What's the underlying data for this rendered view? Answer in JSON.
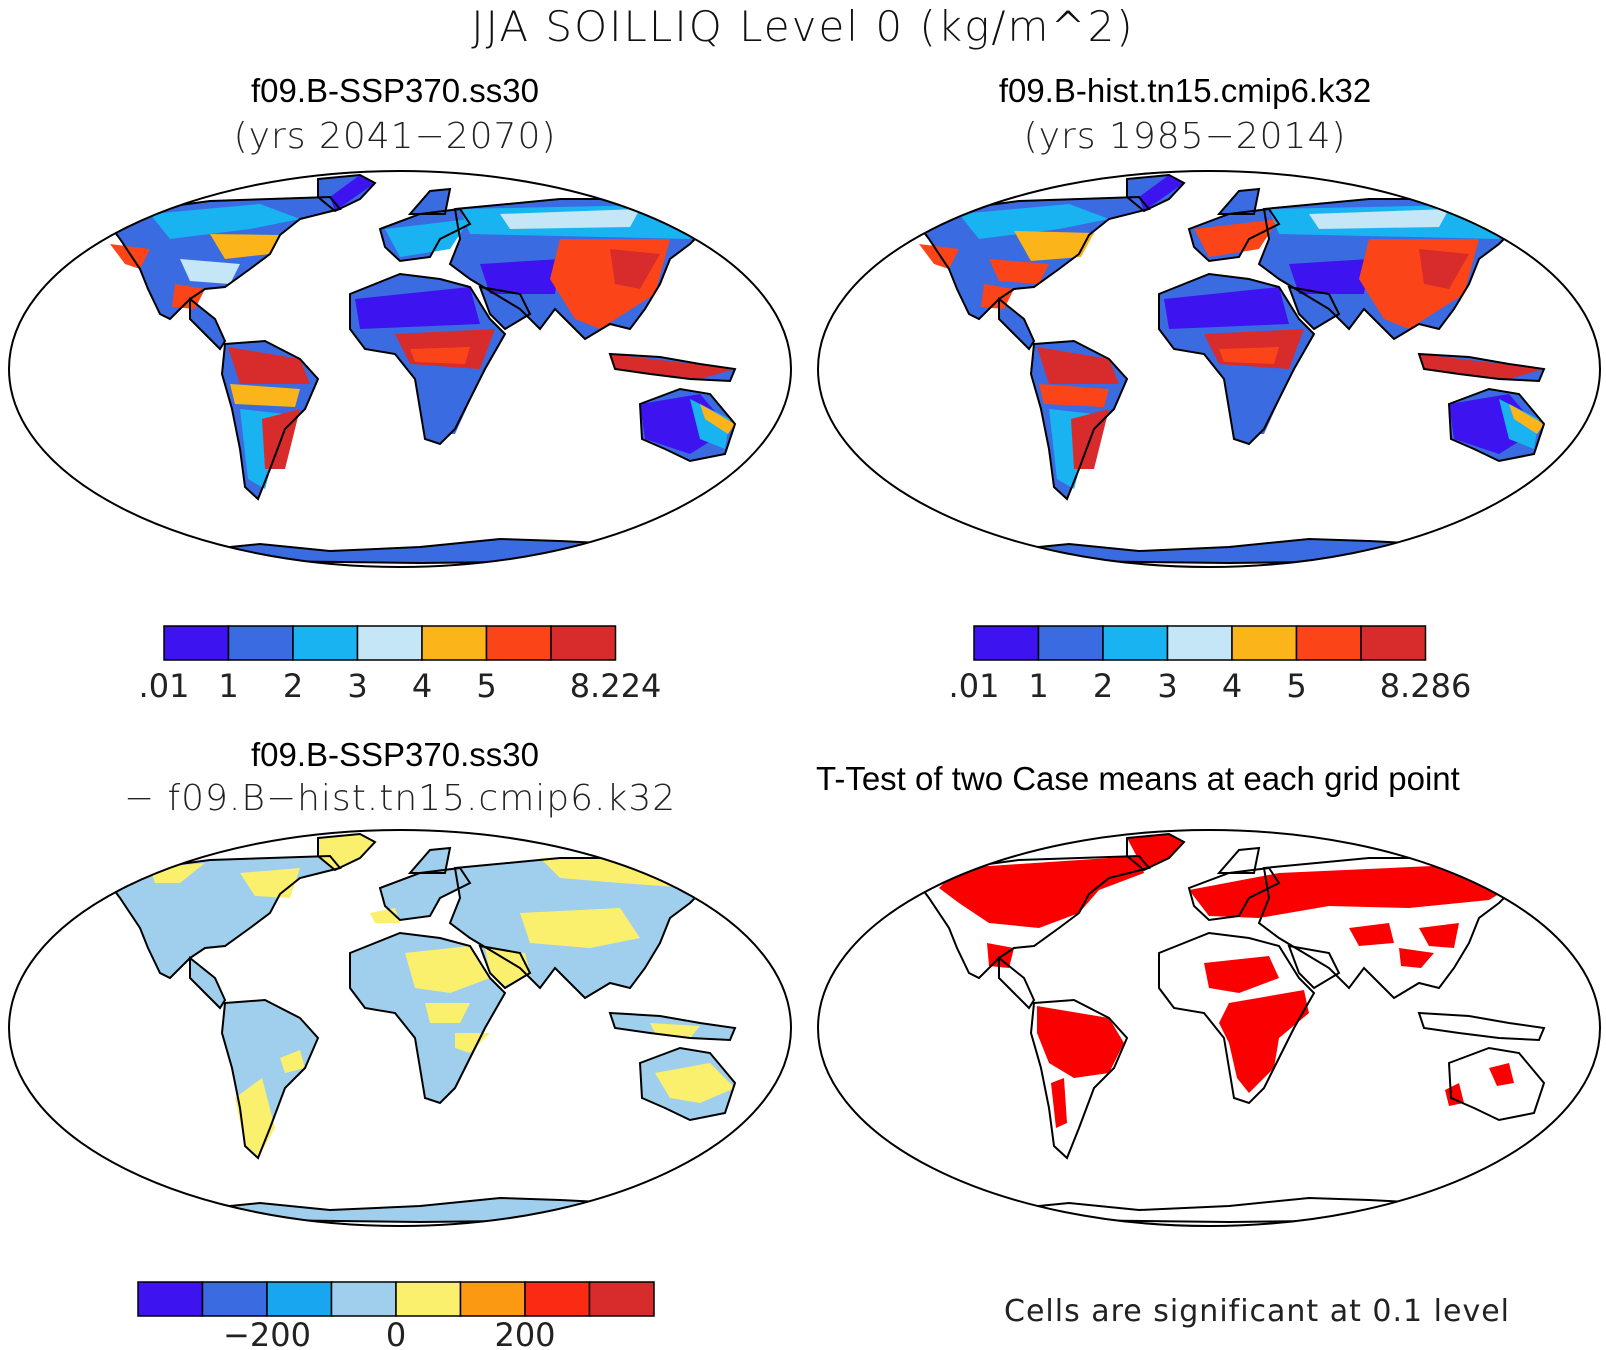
{
  "figure": {
    "title": "JJA SOILLIQ Level 0 (kg/m^2)"
  },
  "panels": [
    {
      "id": "case",
      "title": "f09.B-SSP370.ss30",
      "subtitle": "(yrs 2041−2070)",
      "colorbar": {
        "colors": [
          "#3d14ef",
          "#3b6be0",
          "#19b3f1",
          "#c4e6f7",
          "#fbb419",
          "#fb4518",
          "#d72c2b"
        ],
        "labels": [
          ".01",
          "1",
          "2",
          "3",
          "4",
          "5",
          "8.224"
        ]
      }
    },
    {
      "id": "control",
      "title": "f09.B-hist.tn15.cmip6.k32",
      "subtitle": "(yrs 1985−2014)",
      "colorbar": {
        "colors": [
          "#3d14ef",
          "#3b6be0",
          "#19b3f1",
          "#c4e6f7",
          "#fbb419",
          "#fb4518",
          "#d72c2b"
        ],
        "labels": [
          ".01",
          "1",
          "2",
          "3",
          "4",
          "5",
          "8.286"
        ]
      }
    },
    {
      "id": "difference",
      "title": "f09.B-SSP370.ss30",
      "subtitle": "− f09.B−hist.tn15.cmip6.k32",
      "colorbar": {
        "colors": [
          "#3d14ef",
          "#3b6be0",
          "#19a6f1",
          "#9fcfec",
          "#fbf06d",
          "#fb9a12",
          "#fb2a12",
          "#d72c2b"
        ],
        "labels": [
          "−200",
          "0",
          "200"
        ]
      }
    },
    {
      "id": "ttest",
      "title": "T-Test of two Case means at each grid point",
      "footnote": "Cells are significant at 0.1 level",
      "significant_color": "#fb0000"
    }
  ]
}
